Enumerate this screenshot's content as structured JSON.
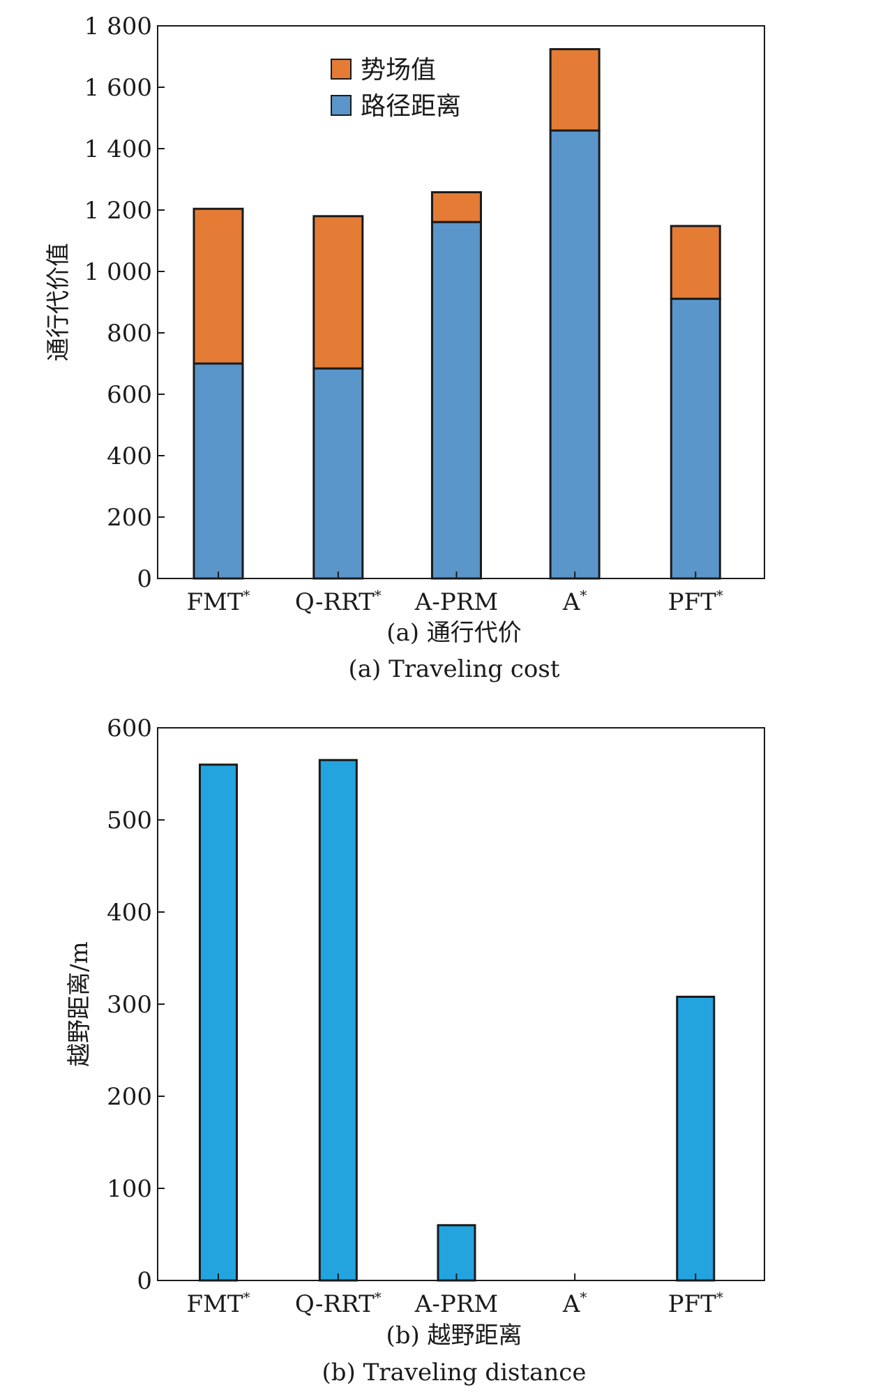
{
  "chart_data": [
    {
      "type": "bar",
      "stacked": true,
      "caption_cn": "(a) 通行代价",
      "caption_en": "(a) Traveling cost",
      "ylabel": "通行代价值",
      "xlabel": "",
      "categories": [
        {
          "name": "FMT",
          "sup": "*"
        },
        {
          "name": "Q-RRT",
          "sup": "*"
        },
        {
          "name": "A-PRM",
          "sup": ""
        },
        {
          "name": "A",
          "sup": "*"
        },
        {
          "name": "PFT",
          "sup": "*"
        }
      ],
      "series": [
        {
          "name": "路径距离",
          "color": "#5b96cb",
          "values": [
            700,
            684,
            1161,
            1459,
            911
          ]
        },
        {
          "name": "势场值",
          "color": "#e47c35",
          "values": [
            504,
            496,
            97,
            265,
            237
          ]
        }
      ],
      "ylim": [
        0,
        1800
      ],
      "yticks": [
        0,
        200,
        400,
        600,
        800,
        1000,
        1200,
        1400,
        1600,
        1800
      ],
      "ytick_labels": [
        "0",
        "200",
        "400",
        "600",
        "800",
        "1 000",
        "1 200",
        "1 400",
        "1 600",
        "1 800"
      ],
      "legend": {
        "position": "top-center",
        "order": [
          "势场值",
          "路径距离"
        ]
      },
      "grid": false
    },
    {
      "type": "bar",
      "stacked": false,
      "caption_cn": "(b) 越野距离",
      "caption_en": "(b) Traveling distance",
      "ylabel": "越野距离/m",
      "xlabel": "",
      "categories": [
        {
          "name": "FMT",
          "sup": "*"
        },
        {
          "name": "Q-RRT",
          "sup": "*"
        },
        {
          "name": "A-PRM",
          "sup": ""
        },
        {
          "name": "A",
          "sup": "*"
        },
        {
          "name": "PFT",
          "sup": "*"
        }
      ],
      "series": [
        {
          "color": "#23a4de",
          "values": [
            560,
            565,
            60,
            0,
            308
          ]
        }
      ],
      "ylim": [
        0,
        600
      ],
      "yticks": [
        0,
        100,
        200,
        300,
        400,
        500,
        600
      ],
      "ytick_labels": [
        "0",
        "100",
        "200",
        "300",
        "400",
        "500",
        "600"
      ],
      "grid": false
    }
  ]
}
